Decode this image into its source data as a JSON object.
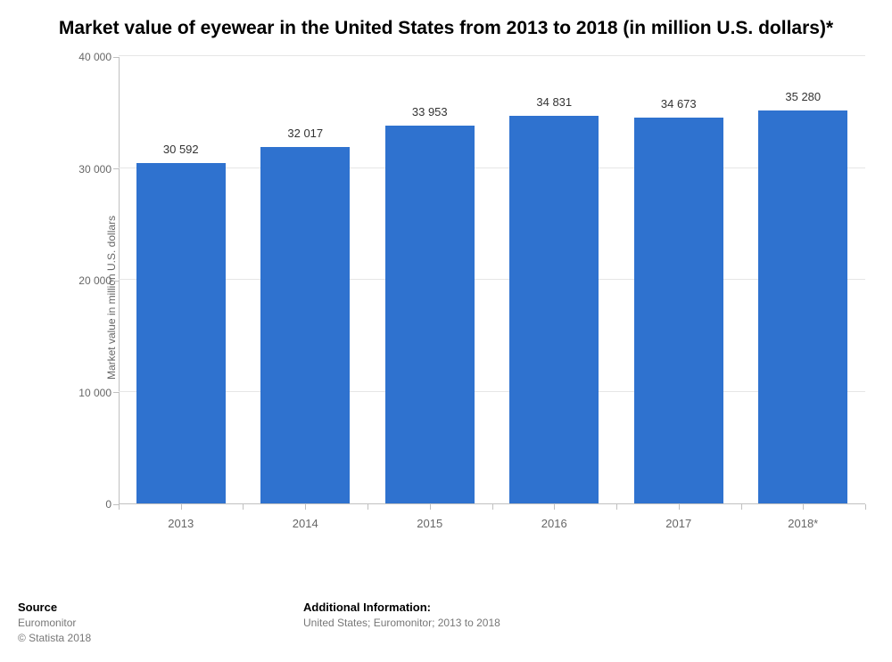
{
  "chart": {
    "type": "bar",
    "title": "Market value of eyewear in the United States from 2013 to 2018 (in million U.S. dollars)*",
    "title_fontsize": 21,
    "title_color": "#000000",
    "y_axis_label": "Market value in million U.S. dollars",
    "axis_label_color": "#666666",
    "axis_label_fontsize": 12,
    "background_color": "#ffffff",
    "grid_color": "#e6e6e6",
    "axis_line_color": "#c0c0c0",
    "tick_label_color": "#666666",
    "tick_label_fontsize": 12,
    "bar_color": "#2f72cf",
    "bar_width_ratio": 0.72,
    "value_label_color": "#333333",
    "value_label_fontsize": 13,
    "ylim": [
      0,
      40000
    ],
    "ytick_step": 10000,
    "yticks": [
      {
        "value": 0,
        "label": "0"
      },
      {
        "value": 10000,
        "label": "10 000"
      },
      {
        "value": 20000,
        "label": "20 000"
      },
      {
        "value": 30000,
        "label": "30 000"
      },
      {
        "value": 40000,
        "label": "40 000"
      }
    ],
    "categories": [
      "2013",
      "2014",
      "2015",
      "2016",
      "2017",
      "2018*"
    ],
    "values": [
      30592,
      32017,
      33953,
      34831,
      34673,
      35280
    ],
    "value_labels": [
      "30 592",
      "32 017",
      "33 953",
      "34 831",
      "34 673",
      "35 280"
    ]
  },
  "footer": {
    "source_heading": "Source",
    "source_text": "Euromonitor",
    "copyright": "© Statista 2018",
    "info_heading": "Additional Information:",
    "info_text": "United States; Euromonitor; 2013 to 2018",
    "text_color": "#777777",
    "heading_color": "#000000"
  }
}
